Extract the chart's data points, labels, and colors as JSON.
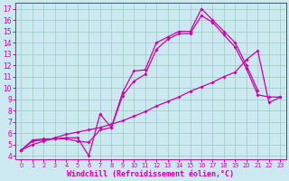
{
  "xlabel": "Windchill (Refroidissement éolien,°C)",
  "bg_color": "#cce8f0",
  "grid_color": "#99ccbb",
  "line_color": "#cc00aa",
  "xlim": [
    -0.5,
    23.5
  ],
  "ylim": [
    3.7,
    17.5
  ],
  "xticks": [
    0,
    1,
    2,
    3,
    4,
    5,
    6,
    7,
    8,
    9,
    10,
    11,
    12,
    13,
    14,
    15,
    16,
    17,
    18,
    19,
    20,
    21,
    22,
    23
  ],
  "yticks": [
    4,
    5,
    6,
    7,
    8,
    9,
    10,
    11,
    12,
    13,
    14,
    15,
    16,
    17
  ],
  "line1_x": [
    0,
    1,
    2,
    3,
    4,
    5,
    6,
    7,
    8,
    9,
    10,
    11,
    12,
    13,
    14,
    15,
    16,
    17,
    18,
    19,
    20,
    21
  ],
  "line1_y": [
    4.5,
    5.4,
    5.5,
    5.5,
    5.6,
    5.6,
    4.0,
    7.7,
    6.5,
    9.6,
    11.5,
    11.6,
    14.0,
    14.5,
    15.0,
    15.0,
    17.0,
    16.0,
    15.0,
    14.0,
    12.0,
    9.8
  ],
  "line2_x": [
    0,
    1,
    2,
    3,
    4,
    5,
    6,
    7,
    8,
    9,
    10,
    11,
    12,
    13,
    14,
    15,
    16,
    17,
    18,
    19,
    20,
    21,
    22,
    23
  ],
  "line2_y": [
    4.5,
    5.3,
    5.4,
    5.5,
    5.5,
    5.3,
    5.2,
    6.3,
    6.5,
    9.3,
    10.6,
    11.2,
    13.4,
    14.3,
    14.8,
    14.8,
    16.4,
    15.8,
    14.7,
    13.6,
    11.7,
    9.4,
    9.2,
    9.2
  ],
  "line3_x": [
    0,
    1,
    2,
    3,
    4,
    5,
    6,
    7,
    8,
    9,
    10,
    11,
    12,
    13,
    14,
    15,
    16,
    17,
    18,
    19,
    20,
    21,
    22,
    23
  ],
  "line3_y": [
    4.5,
    5.0,
    5.3,
    5.6,
    5.9,
    6.1,
    6.3,
    6.5,
    6.8,
    7.1,
    7.5,
    7.9,
    8.4,
    8.8,
    9.2,
    9.7,
    10.1,
    10.5,
    11.0,
    11.4,
    12.5,
    13.3,
    8.7,
    9.2
  ],
  "markersize": 2.0,
  "linewidth": 0.9,
  "xlabel_fontsize": 6.0,
  "tick_fontsize_x": 4.8,
  "tick_fontsize_y": 5.5
}
